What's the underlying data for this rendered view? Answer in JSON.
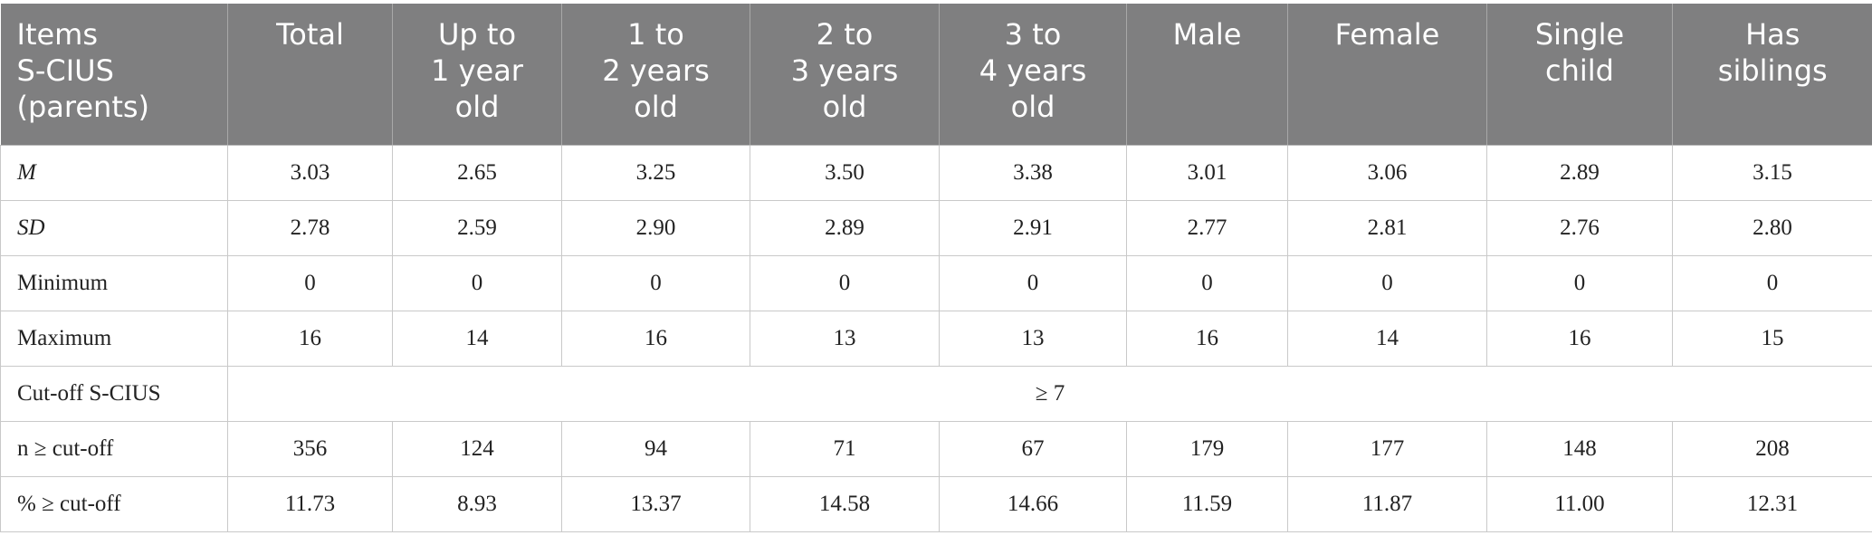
{
  "table": {
    "header": [
      "Items\nS-CIUS\n(parents)",
      "Total",
      "Up to\n1 year\nold",
      "1 to\n2 years\nold",
      "2 to\n3 years\nold",
      "3 to\n4 years\nold",
      "Male",
      "Female",
      "Single\nchild",
      "Has\nsiblings"
    ],
    "rows": [
      [
        "M",
        "3.03",
        "2.65",
        "3.25",
        "3.50",
        "3.38",
        "3.01",
        "3.06",
        "2.89",
        "3.15"
      ],
      [
        "SD",
        "2.78",
        "2.59",
        "2.90",
        "2.89",
        "2.91",
        "2.77",
        "2.81",
        "2.76",
        "2.80"
      ],
      [
        "Minimum",
        "0",
        "0",
        "0",
        "0",
        "0",
        "0",
        "0",
        "0",
        "0"
      ],
      [
        "Maximum",
        "16",
        "14",
        "16",
        "13",
        "13",
        "16",
        "14",
        "16",
        "15"
      ],
      [
        "Cut-off S-CIUS",
        "≥ 7"
      ],
      [
        "n ≥ cut-off",
        "356",
        "124",
        "94",
        "71",
        "67",
        "179",
        "177",
        "148",
        "208"
      ],
      [
        "% ≥ cut-off",
        "11.73",
        "8.93",
        "13.37",
        "14.58",
        "14.66",
        "11.59",
        "11.87",
        "11.00",
        "12.31"
      ]
    ]
  }
}
